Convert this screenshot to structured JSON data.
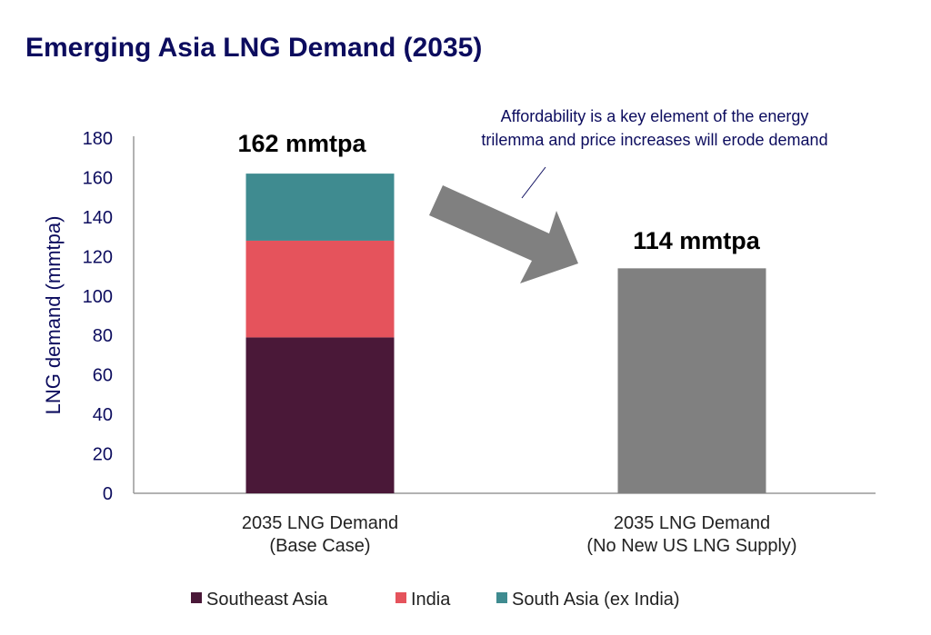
{
  "chart_data": {
    "type": "bar",
    "stacked": true,
    "title": "Emerging Asia LNG Demand (2035)",
    "xlabel": "",
    "ylabel": "LNG demand (mmtpa)",
    "ylim": [
      0,
      180
    ],
    "yticks": [
      0,
      20,
      40,
      60,
      80,
      100,
      120,
      140,
      160,
      180
    ],
    "grid": false,
    "legend_position": "bottom",
    "categories": [
      [
        "2035 LNG Demand",
        "(Base Case)"
      ],
      [
        "2035 LNG Demand",
        "(No New US LNG Supply)"
      ]
    ],
    "series": [
      {
        "name": "Southeast Asia",
        "color": "#4a1838",
        "values": [
          79,
          null
        ]
      },
      {
        "name": "India",
        "color": "#e5535c",
        "values": [
          49,
          null
        ]
      },
      {
        "name": "South Asia (ex India)",
        "color": "#3f8b90",
        "values": [
          34,
          null
        ]
      },
      {
        "name": "",
        "color": "#808080",
        "values": [
          null,
          114
        ]
      }
    ],
    "data_labels": [
      "162 mmtpa",
      "114 mmtpa"
    ],
    "totals": [
      162,
      114
    ],
    "annotation": [
      "Affordability is a key element of the energy",
      "trilemma and price increases will erode demand"
    ],
    "arrow_color": "#808080"
  }
}
